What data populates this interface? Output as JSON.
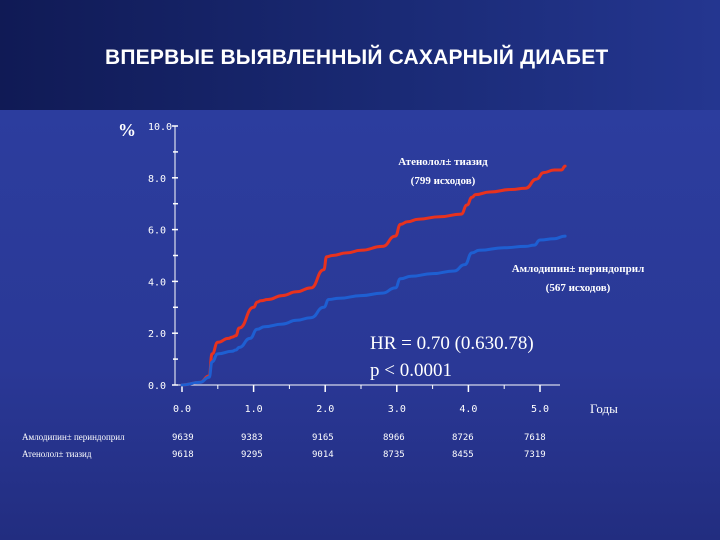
{
  "title": "ВПЕРВЫЕ ВЫЯВЛЕННЫЙ САХАРНЫЙ ДИАБЕТ",
  "chart_data": {
    "type": "line",
    "ylabel": "%",
    "xlabel": "Годы",
    "ylim": [
      0,
      10
    ],
    "xlim": [
      0,
      5.5
    ],
    "yticks": [
      "0.0",
      "2.0",
      "4.0",
      "6.0",
      "8.0",
      "10.0"
    ],
    "xticks": [
      "0.0",
      "1.0",
      "2.0",
      "3.0",
      "4.0",
      "5.0"
    ],
    "series": [
      {
        "name": "Атенолол± тиазид",
        "subtitle": "(799 исходов)",
        "color": "#e8321e",
        "x": [
          0,
          0.25,
          0.38,
          0.42,
          0.5,
          0.65,
          0.7,
          0.75,
          0.8,
          1.0,
          1.05,
          1.1,
          1.2,
          1.4,
          1.6,
          1.8,
          1.98,
          2.02,
          2.1,
          2.3,
          2.5,
          2.8,
          2.98,
          3.05,
          3.15,
          3.3,
          3.6,
          3.9,
          3.98,
          4.05,
          4.1,
          4.3,
          4.6,
          4.8,
          4.95,
          5.05,
          5.2,
          5.3,
          5.35
        ],
        "y": [
          0,
          0.1,
          0.35,
          1.2,
          1.65,
          1.8,
          1.85,
          1.9,
          2.2,
          3.0,
          3.2,
          3.25,
          3.3,
          3.45,
          3.6,
          3.75,
          4.45,
          4.95,
          5.0,
          5.1,
          5.2,
          5.35,
          5.75,
          6.2,
          6.3,
          6.4,
          6.5,
          6.6,
          6.95,
          7.25,
          7.35,
          7.45,
          7.55,
          7.6,
          7.95,
          8.2,
          8.3,
          8.3,
          8.45
        ]
      },
      {
        "name": "Амлодипин± периндоприл",
        "subtitle": "(567 исходов)",
        "color": "#1e5fd2",
        "x": [
          0,
          0.25,
          0.38,
          0.42,
          0.5,
          0.7,
          0.75,
          0.8,
          0.95,
          1.05,
          1.15,
          1.4,
          1.6,
          1.8,
          1.98,
          2.05,
          2.2,
          2.5,
          2.8,
          2.98,
          3.05,
          3.2,
          3.5,
          3.8,
          3.95,
          4.05,
          4.15,
          4.5,
          4.8,
          4.92,
          5.0,
          5.2,
          5.35
        ],
        "y": [
          0,
          0.1,
          0.3,
          0.9,
          1.2,
          1.3,
          1.35,
          1.45,
          1.8,
          2.15,
          2.25,
          2.35,
          2.5,
          2.6,
          3.0,
          3.3,
          3.35,
          3.45,
          3.55,
          3.75,
          4.1,
          4.2,
          4.3,
          4.4,
          4.65,
          5.1,
          5.2,
          5.3,
          5.35,
          5.4,
          5.6,
          5.65,
          5.75
        ]
      }
    ],
    "annotations": {
      "hr_line1": "HR = 0.70 (0.630.78)",
      "hr_line2": "p < 0.0001"
    },
    "at_risk": [
      {
        "label": "Амлодипин± периндоприл",
        "values": [
          "9639",
          "9383",
          "9165",
          "8966",
          "8726",
          "7618"
        ]
      },
      {
        "label": "Атенолол± тиазид",
        "values": [
          "9618",
          "9295",
          "9014",
          "8735",
          "8455",
          "7319"
        ]
      }
    ]
  }
}
